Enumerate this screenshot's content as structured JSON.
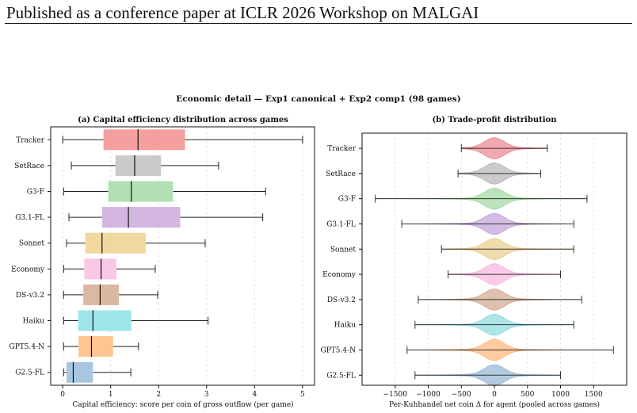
{
  "page": {
    "header": "Published as a conference paper at ICLR 2026 Workshop on MALGAI"
  },
  "figure": {
    "suptitle": "Economic detail — Exp1 canonical + Exp2 comp1 (98 games)"
  },
  "chart_data": [
    {
      "type": "box",
      "orientation": "horizontal",
      "title": "(a) Capital efficiency distribution across games",
      "xlabel": "Capital efficiency: score per coin of gross outflow (per game)",
      "ylabel": "",
      "xlim": [
        -0.25,
        5.25
      ],
      "xticks": [
        0,
        1,
        2,
        3,
        4,
        5
      ],
      "grid": "x",
      "series": [
        {
          "name": "Tracker",
          "whisker_low": 0.0,
          "q1": 0.85,
          "median": 1.57,
          "q3": 2.55,
          "whisker_high": 5.0,
          "color": "#f08080"
        },
        {
          "name": "SetRace",
          "whisker_low": 0.18,
          "q1": 1.1,
          "median": 1.5,
          "q3": 2.05,
          "whisker_high": 3.25,
          "color": "#b8b8b8"
        },
        {
          "name": "G3-F",
          "whisker_low": 0.02,
          "q1": 0.95,
          "median": 1.43,
          "q3": 2.3,
          "whisker_high": 4.23,
          "color": "#98d698"
        },
        {
          "name": "G3.1-FL",
          "whisker_low": 0.13,
          "q1": 0.82,
          "median": 1.37,
          "q3": 2.45,
          "whisker_high": 4.17,
          "color": "#c49fd6"
        },
        {
          "name": "Sonnet",
          "whisker_low": 0.08,
          "q1": 0.47,
          "median": 0.82,
          "q3": 1.73,
          "whisker_high": 2.97,
          "color": "#ebcb80"
        },
        {
          "name": "Economy",
          "whisker_low": 0.02,
          "q1": 0.45,
          "median": 0.8,
          "q3": 1.12,
          "whisker_high": 1.93,
          "color": "#f8b5df"
        },
        {
          "name": "DS-v3.2",
          "whisker_low": 0.02,
          "q1": 0.43,
          "median": 0.78,
          "q3": 1.17,
          "whisker_high": 1.98,
          "color": "#cfa083"
        },
        {
          "name": "Haiku",
          "whisker_low": 0.02,
          "q1": 0.32,
          "median": 0.63,
          "q3": 1.43,
          "whisker_high": 3.03,
          "color": "#7fdde3"
        },
        {
          "name": "GPT5.4-N",
          "whisker_low": 0.02,
          "q1": 0.33,
          "median": 0.6,
          "q3": 1.05,
          "whisker_high": 1.58,
          "color": "#ffb26b"
        },
        {
          "name": "G2.5-FL",
          "whisker_low": 0.02,
          "q1": 0.08,
          "median": 0.22,
          "q3": 0.63,
          "whisker_high": 1.42,
          "color": "#8ab3d6"
        }
      ]
    },
    {
      "type": "violin",
      "orientation": "horizontal",
      "title": "(b) Trade-profit distribution",
      "xlabel": "Per-Kuhhandel net coin Δ for agent (pooled across games)",
      "ylabel": "",
      "xlim": [
        -2000,
        2000
      ],
      "xticks": [
        -1500,
        -1000,
        -500,
        0,
        500,
        1000,
        1500
      ],
      "xtick_labels": [
        "−1500",
        "−1000",
        "−500",
        "0",
        "500",
        "1000",
        "1500"
      ],
      "grid": "x",
      "series": [
        {
          "name": "Tracker",
          "min": -500,
          "max": 800,
          "color": "#e8707a"
        },
        {
          "name": "SetRace",
          "min": -550,
          "max": 700,
          "color": "#a8a8a8"
        },
        {
          "name": "G3-F",
          "min": -1800,
          "max": 1400,
          "color": "#90d090"
        },
        {
          "name": "G3.1-FL",
          "min": -1400,
          "max": 1200,
          "color": "#b88fd0"
        },
        {
          "name": "Sonnet",
          "min": -800,
          "max": 1200,
          "color": "#e5c477"
        },
        {
          "name": "Economy",
          "min": -700,
          "max": 1000,
          "color": "#f5a8d8"
        },
        {
          "name": "DS-v3.2",
          "min": -1150,
          "max": 1320,
          "color": "#c89878"
        },
        {
          "name": "Haiku",
          "min": -1200,
          "max": 1200,
          "color": "#78d4dc"
        },
        {
          "name": "GPT5.4-N",
          "min": -1320,
          "max": 1800,
          "color": "#ffa860"
        },
        {
          "name": "G2.5-FL",
          "min": -1200,
          "max": 1000,
          "color": "#80a8cc"
        }
      ]
    }
  ]
}
